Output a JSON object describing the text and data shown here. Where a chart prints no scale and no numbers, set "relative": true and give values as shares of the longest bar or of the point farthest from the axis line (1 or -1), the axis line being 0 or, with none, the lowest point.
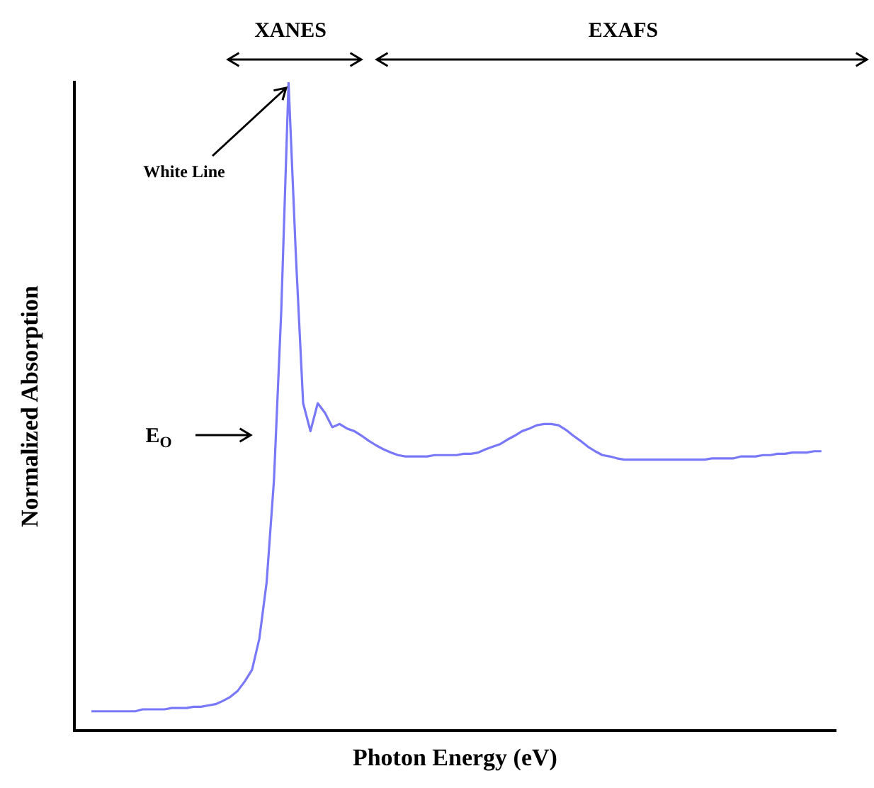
{
  "chart_data": {
    "type": "line",
    "relative": true,
    "xlabel": "Photon Energy (eV)",
    "ylabel": "Normalized Absorption",
    "color": "#7878f8",
    "annotations": [
      "XANES",
      "EXAFS",
      "White Line",
      "E$_{O}$"
    ],
    "categories": [
      null,
      null,
      null,
      null,
      null,
      null,
      null,
      null,
      null,
      null,
      null,
      null,
      null,
      null,
      null,
      null,
      null,
      null,
      null,
      null,
      null,
      null,
      null,
      null,
      null,
      null,
      null,
      null,
      null,
      null,
      null,
      null,
      null,
      null,
      null,
      null,
      null,
      null,
      null,
      null,
      null,
      null,
      null,
      null,
      null,
      null,
      null,
      null,
      null,
      null,
      null,
      null,
      null,
      null,
      null,
      null,
      null,
      null,
      null,
      null,
      null,
      null,
      null,
      null,
      null,
      null,
      null,
      null,
      null,
      null,
      null,
      null,
      null,
      null,
      null,
      null,
      null,
      null,
      null,
      null,
      null,
      null,
      null,
      null,
      null,
      null,
      null,
      null,
      null,
      null,
      null,
      null,
      null,
      null,
      null,
      null,
      null,
      null,
      null,
      null,
      null
    ],
    "values": [
      0.03,
      0.03,
      0.03,
      0.03,
      0.03,
      0.03,
      0.03,
      0.033,
      0.033,
      0.033,
      0.033,
      0.035,
      0.035,
      0.035,
      0.037,
      0.037,
      0.039,
      0.041,
      0.046,
      0.052,
      0.061,
      0.076,
      0.094,
      0.142,
      0.229,
      0.386,
      0.647,
      1,
      0.734,
      0.505,
      0.462,
      0.505,
      0.49,
      0.468,
      0.473,
      0.466,
      0.462,
      0.455,
      0.447,
      0.44,
      0.434,
      0.429,
      0.425,
      0.423,
      0.423,
      0.423,
      0.423,
      0.425,
      0.425,
      0.425,
      0.425,
      0.427,
      0.427,
      0.429,
      0.434,
      0.438,
      0.442,
      0.449,
      0.455,
      0.462,
      0.466,
      0.471,
      0.473,
      0.473,
      0.471,
      0.464,
      0.455,
      0.447,
      0.438,
      0.431,
      0.425,
      0.423,
      0.42,
      0.418,
      0.418,
      0.418,
      0.418,
      0.418,
      0.418,
      0.418,
      0.418,
      0.418,
      0.418,
      0.418,
      0.418,
      0.42,
      0.42,
      0.42,
      0.42,
      0.423,
      0.423,
      0.423,
      0.425,
      0.425,
      0.427,
      0.427,
      0.429,
      0.429,
      0.429,
      0.431,
      0.431
    ]
  }
}
